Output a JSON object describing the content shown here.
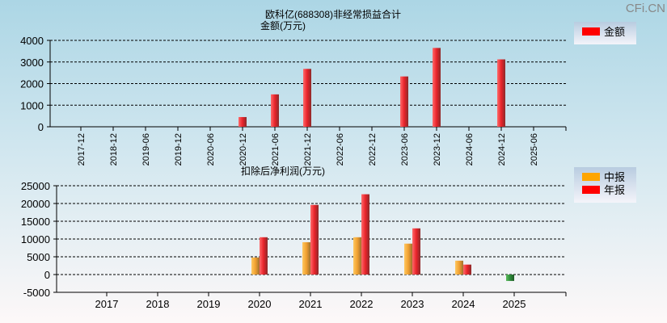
{
  "watermark": "CFi.CN",
  "chart_data": [
    {
      "type": "bar",
      "title": "欧科亿(688308)非经常损益合计",
      "subtitle": "金额(万元)",
      "categories": [
        "2017-12",
        "2018-12",
        "2019-06",
        "2019-12",
        "2020-06",
        "2020-12",
        "2021-06",
        "2021-12",
        "2022-06",
        "2022-12",
        "2023-06",
        "2023-12",
        "2024-06",
        "2024-12",
        "2025-06"
      ],
      "series": [
        {
          "name": "金额",
          "color": "#ff0000",
          "values": [
            null,
            null,
            null,
            null,
            null,
            450,
            1500,
            2680,
            null,
            null,
            2330,
            3650,
            null,
            3120,
            null
          ]
        }
      ],
      "ylim": [
        0,
        4000
      ],
      "yticks": [
        0,
        1000,
        2000,
        3000,
        4000
      ],
      "grid": true,
      "legend": "right"
    },
    {
      "type": "bar",
      "title": "扣除后净利润(万元)",
      "categories": [
        "2017",
        "2018",
        "2019",
        "2020",
        "2021",
        "2022",
        "2023",
        "2024",
        "2025"
      ],
      "series": [
        {
          "name": "中报",
          "color": "#ffa500",
          "values": [
            null,
            null,
            null,
            4800,
            9100,
            10500,
            8700,
            3900,
            -1800
          ]
        },
        {
          "name": "年报",
          "color": "#ff0000",
          "values": [
            null,
            null,
            null,
            10500,
            19600,
            22600,
            13000,
            2800,
            null
          ]
        }
      ],
      "negative_color": "#2e8b3a",
      "ylim": [
        -5000,
        25000
      ],
      "yticks": [
        -5000,
        0,
        5000,
        10000,
        15000,
        20000,
        25000
      ],
      "grid": true,
      "legend": "right"
    }
  ]
}
